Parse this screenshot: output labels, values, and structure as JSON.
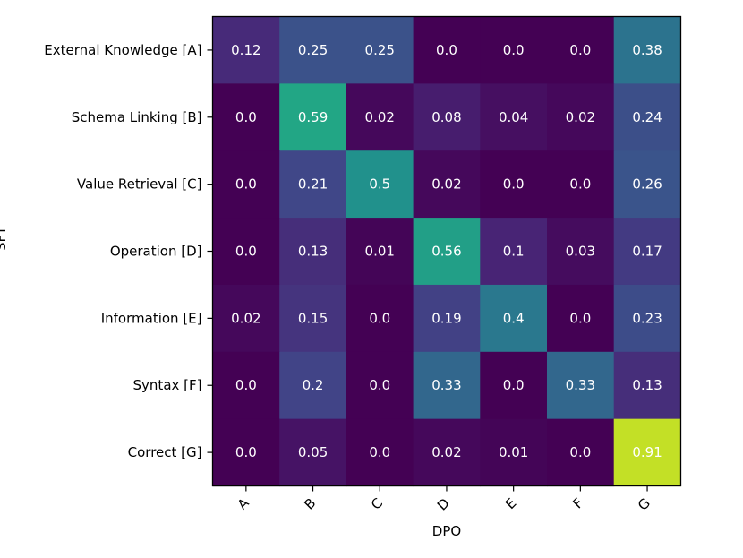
{
  "chart_data": {
    "type": "heatmap",
    "colormap": "viridis",
    "value_range": [
      0,
      1
    ],
    "xlabel": "DPO",
    "ylabel": "SFT",
    "x_categories": [
      "A",
      "B",
      "C",
      "D",
      "E",
      "F",
      "G"
    ],
    "y_categories": [
      "External Knowledge [A]",
      "Schema Linking [B]",
      "Value Retrieval [C]",
      "Operation [D]",
      "Information [E]",
      "Syntax [F]",
      "Correct [G]"
    ],
    "values": [
      [
        0.12,
        0.25,
        0.25,
        0.0,
        0.0,
        0.0,
        0.38
      ],
      [
        0.0,
        0.59,
        0.02,
        0.08,
        0.04,
        0.02,
        0.24
      ],
      [
        0.0,
        0.21,
        0.5,
        0.02,
        0.0,
        0.0,
        0.26
      ],
      [
        0.0,
        0.13,
        0.01,
        0.56,
        0.1,
        0.03,
        0.17
      ],
      [
        0.02,
        0.15,
        0.0,
        0.19,
        0.4,
        0.0,
        0.23
      ],
      [
        0.0,
        0.2,
        0.0,
        0.33,
        0.0,
        0.33,
        0.13
      ],
      [
        0.0,
        0.05,
        0.0,
        0.02,
        0.01,
        0.0,
        0.91
      ]
    ],
    "labels": [
      [
        "0.12",
        "0.25",
        "0.25",
        "0.0",
        "0.0",
        "0.0",
        "0.38"
      ],
      [
        "0.0",
        "0.59",
        "0.02",
        "0.08",
        "0.04",
        "0.02",
        "0.24"
      ],
      [
        "0.0",
        "0.21",
        "0.5",
        "0.02",
        "0.0",
        "0.0",
        "0.26"
      ],
      [
        "0.0",
        "0.13",
        "0.01",
        "0.56",
        "0.1",
        "0.03",
        "0.17"
      ],
      [
        "0.02",
        "0.15",
        "0.0",
        "0.19",
        "0.4",
        "0.0",
        "0.23"
      ],
      [
        "0.0",
        "0.2",
        "0.0",
        "0.33",
        "0.0",
        "0.33",
        "0.13"
      ],
      [
        "0.0",
        "0.05",
        "0.0",
        "0.02",
        "0.01",
        "0.0",
        "0.91"
      ]
    ]
  }
}
